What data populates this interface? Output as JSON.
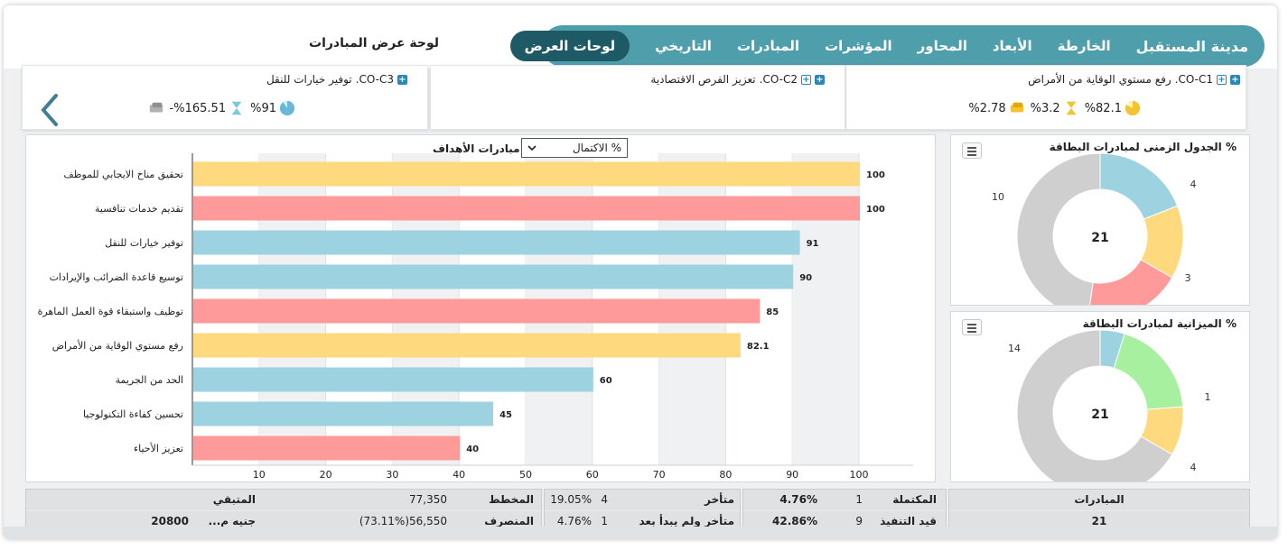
{
  "header": {
    "brand": "مدينة المستقبل",
    "nav": [
      "الخارطة",
      "الأبعاد",
      "المحاور",
      "المؤشرات",
      "المبادرات",
      "التاريخي"
    ],
    "active_tab": "لوحات العرض",
    "page_title": "لوحة عرض المبادرات"
  },
  "cards": [
    {
      "code": "CO-C1.",
      "title": "رفع مستوي الوقاية من الأمراض",
      "kpis": [
        {
          "value": "%82.1",
          "icon": "pie-icon"
        },
        {
          "value": "%3.2",
          "icon": "hourglass-icon"
        },
        {
          "value": "%2.78",
          "icon": "money-icon"
        }
      ]
    },
    {
      "code": "CO-C2.",
      "title": "تعزيز الفرص الاقتصادية",
      "kpis": []
    },
    {
      "code": "CO-C3.",
      "title": "توفير خيارات للنقل",
      "kpis": [
        {
          "value": "%91",
          "icon": "pie-icon"
        },
        {
          "value": "%165.51-",
          "icon": "hourglass-icon"
        },
        {
          "value": "",
          "icon": "money-icon"
        }
      ]
    }
  ],
  "bar_chart": {
    "title": "مبادرات الأهداف",
    "select_value": "% الاكتمال",
    "ticks": [
      "10",
      "20",
      "30",
      "40",
      "50",
      "60",
      "70",
      "80",
      "90",
      "100"
    ]
  },
  "chart_data": [
    {
      "type": "bar",
      "orientation": "horizontal",
      "title": "مبادرات الأهداف",
      "categories": [
        "تحقيق مناخ الايجابي للموظف",
        "تقديم خدمات تنافسية",
        "توفير خيارات للنقل",
        "توسيع قاعدة الضرائب والإيرادات",
        "توظيف واستبقاء قوة العمل الماهرة",
        "رفع مستوي الوقاية من الأمراض",
        "الحد من الجريمة",
        "تحسين كفاءة التكنولوجيا",
        "تعزيز الأحياء"
      ],
      "values": [
        100,
        100,
        91,
        90,
        85,
        82.1,
        60,
        45,
        40
      ],
      "value_labels": [
        "100",
        "100",
        "91",
        "90",
        "85",
        "82.1",
        "60",
        "45",
        "40"
      ],
      "colors": [
        "#ffd97d",
        "#ff9a9a",
        "#9dd3e0",
        "#9dd3e0",
        "#ff9a9a",
        "#ffd97d",
        "#9dd3e0",
        "#9dd3e0",
        "#ff9a9a"
      ],
      "xlim": [
        0,
        100
      ],
      "grid": true
    },
    {
      "type": "pie",
      "donut": true,
      "title": "% الجدول الزمنى لمبادرات البطاقة",
      "center_label": "21",
      "slices": [
        {
          "value": 4,
          "color": "#9dd3e0"
        },
        {
          "value": 3,
          "color": "#ffd97d"
        },
        {
          "value": 4,
          "color": "#ff9a9a"
        },
        {
          "value": 10,
          "color": "#cfcfcf"
        }
      ],
      "labels": [
        "4",
        "3",
        "10"
      ]
    },
    {
      "type": "pie",
      "donut": true,
      "title": "% الميزانية لمبادرات البطاقة",
      "center_label": "21",
      "slices": [
        {
          "value": 1,
          "color": "#9dd3e0"
        },
        {
          "value": 4,
          "color": "#a6f0a0"
        },
        {
          "value": 2,
          "color": "#ffd97d"
        },
        {
          "value": 14,
          "color": "#cfcfcf"
        }
      ],
      "labels": [
        "1",
        "4",
        "14"
      ]
    }
  ],
  "stats": {
    "initiatives_label": "المبادرات",
    "initiatives_value": "21",
    "completed_label": "المكتملة",
    "completed_count": "1",
    "completed_pct": "4.76%",
    "in_progress_label": "قيد التنفيذ",
    "in_progress_count": "9",
    "in_progress_pct": "42.86%",
    "delayed_label": "متأخر",
    "delayed_count": "4",
    "delayed_pct": "19.05%",
    "not_started_label": "متأخر ولم يبدأ بعد",
    "not_started_count": "1",
    "not_started_pct": "4.76%",
    "planned_label": "المخطط",
    "planned_value": "77,350",
    "spent_label": "المنصرف",
    "spent_value": "56,550(73.11%)",
    "remaining_label": "المتبقي",
    "remaining_unit": "جنيه م...",
    "remaining_value": "20800"
  },
  "colors": {
    "nav_bg": "#4f9eab",
    "nav_active": "#1d5a66",
    "blue": "#9dd3e0",
    "yellow": "#ffd97d",
    "red": "#ff9a9a",
    "green": "#a6f0a0",
    "gray": "#cfcfcf"
  }
}
